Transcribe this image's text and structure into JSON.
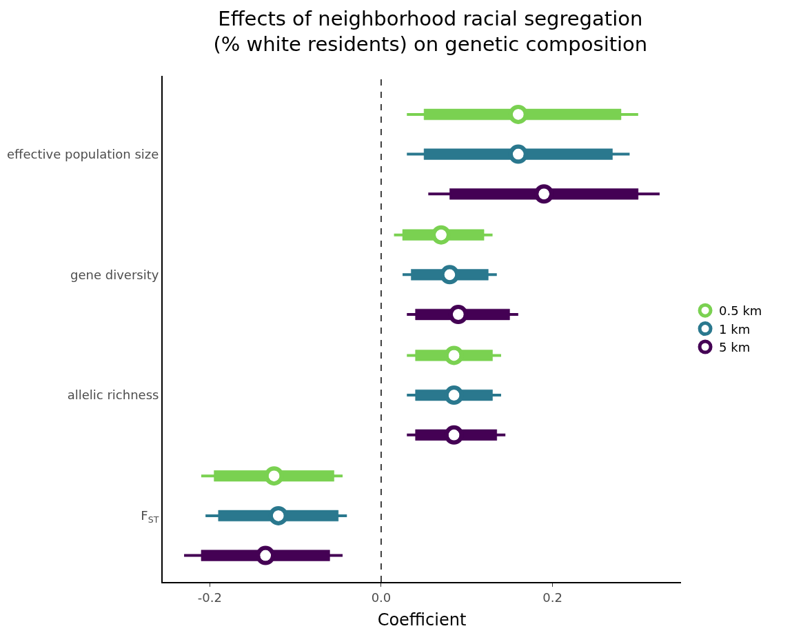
{
  "chart_data": {
    "type": "box",
    "orientation": "horizontal",
    "title": "Effects of neighborhood racial segregation\n(% white residents) on genetic composition",
    "xlabel": "Coefficient",
    "categories": [
      "effective population size",
      "gene diversity",
      "allelic richness",
      "F$_{ST}$"
    ],
    "series": [
      {
        "name": "0.5 km",
        "color": "#7ad151",
        "boxes": [
          {
            "low": 0.03,
            "q1": 0.05,
            "median": 0.16,
            "q3": 0.28,
            "high": 0.3
          },
          {
            "low": 0.015,
            "q1": 0.025,
            "median": 0.07,
            "q3": 0.12,
            "high": 0.13
          },
          {
            "low": 0.03,
            "q1": 0.04,
            "median": 0.085,
            "q3": 0.13,
            "high": 0.14
          },
          {
            "low": -0.21,
            "q1": -0.195,
            "median": -0.125,
            "q3": -0.055,
            "high": -0.045
          }
        ]
      },
      {
        "name": "1 km",
        "color": "#2a788e",
        "boxes": [
          {
            "low": 0.03,
            "q1": 0.05,
            "median": 0.16,
            "q3": 0.27,
            "high": 0.29
          },
          {
            "low": 0.025,
            "q1": 0.035,
            "median": 0.08,
            "q3": 0.125,
            "high": 0.135
          },
          {
            "low": 0.03,
            "q1": 0.04,
            "median": 0.085,
            "q3": 0.13,
            "high": 0.14
          },
          {
            "low": -0.205,
            "q1": -0.19,
            "median": -0.12,
            "q3": -0.05,
            "high": -0.04
          }
        ]
      },
      {
        "name": "5 km",
        "color": "#440154",
        "boxes": [
          {
            "low": 0.055,
            "q1": 0.08,
            "median": 0.19,
            "q3": 0.3,
            "high": 0.325
          },
          {
            "low": 0.03,
            "q1": 0.04,
            "median": 0.09,
            "q3": 0.15,
            "high": 0.16
          },
          {
            "low": 0.03,
            "q1": 0.04,
            "median": 0.085,
            "q3": 0.135,
            "high": 0.145
          },
          {
            "low": -0.23,
            "q1": -0.21,
            "median": -0.135,
            "q3": -0.06,
            "high": -0.045
          }
        ]
      }
    ],
    "xlim": [
      -0.255,
      0.35
    ],
    "xticks": [
      -0.2,
      {
        "value": 0,
        "label": "0.0"
      },
      0.2
    ],
    "ref_lines": [
      {
        "axis": "x",
        "value": 0,
        "line_style": "dashed",
        "color": "#000000"
      }
    ],
    "marker": "circle",
    "legend": "right"
  }
}
